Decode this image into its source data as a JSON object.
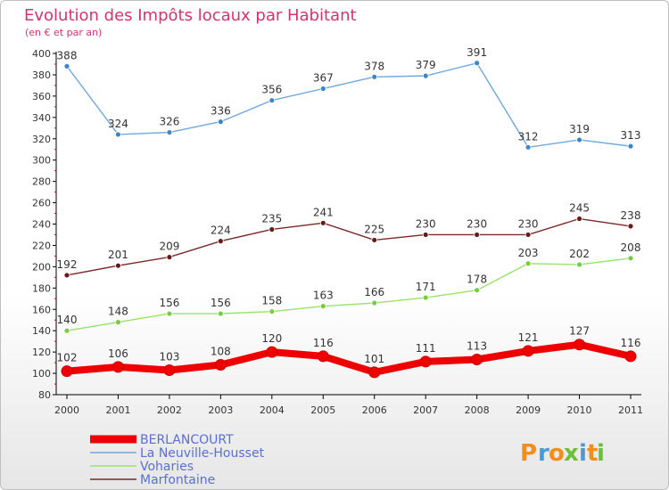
{
  "chart_data": {
    "type": "line",
    "title": "Evolution des Impôts locaux par Habitant",
    "subtitle": "(en € et par an)",
    "x": [
      "2000",
      "2001",
      "2002",
      "2003",
      "2004",
      "2005",
      "2006",
      "2007",
      "2008",
      "2009",
      "2010",
      "2011"
    ],
    "ylim": [
      80,
      400
    ],
    "yticks": [
      80,
      100,
      120,
      140,
      160,
      180,
      200,
      220,
      240,
      260,
      280,
      300,
      320,
      340,
      360,
      380,
      400
    ],
    "grid": false,
    "legend_position": "bottom-left",
    "series": [
      {
        "name": "La Neuville-Housset",
        "color": "#6fa8dc",
        "marker": "#3d85c6",
        "thick": false,
        "values": [
          388,
          324,
          326,
          336,
          356,
          367,
          378,
          379,
          391,
          312,
          319,
          313
        ]
      },
      {
        "name": "Marfontaine",
        "color": "#7b2a2a",
        "marker": "#661a1a",
        "thick": false,
        "values": [
          192,
          201,
          209,
          224,
          235,
          241,
          225,
          230,
          230,
          230,
          245,
          238
        ]
      },
      {
        "name": "Voharies",
        "color": "#9be26a",
        "marker": "#77cc44",
        "thick": false,
        "values": [
          140,
          148,
          156,
          156,
          158,
          163,
          166,
          171,
          178,
          203,
          202,
          208
        ]
      },
      {
        "name": "BERLANCOURT",
        "color": "#ee0000",
        "marker": "#ee0000",
        "thick": true,
        "values": [
          102,
          106,
          103,
          108,
          120,
          116,
          101,
          111,
          113,
          121,
          127,
          116
        ]
      }
    ],
    "legend_order": [
      "BERLANCOURT",
      "La Neuville-Housset",
      "Voharies",
      "Marfontaine"
    ]
  },
  "logo": {
    "text": "Proxiti",
    "letters": [
      "P",
      "r",
      "o",
      "x",
      "i",
      "t",
      "i"
    ],
    "colors": [
      "#f28e1c",
      "#4a9ad6",
      "#f28e1c",
      "#6cbf3a",
      "#4a9ad6",
      "#f28e1c",
      "#6cbf3a"
    ]
  }
}
